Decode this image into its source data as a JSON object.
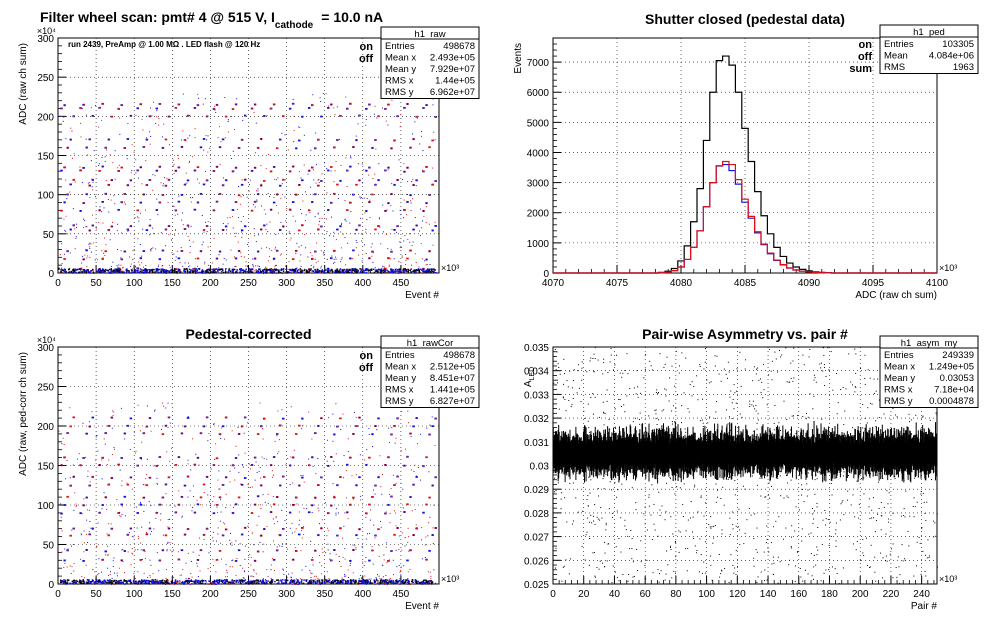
{
  "page_title": {
    "prefix": "Filter wheel scan: pmt#",
    "pmt": "4 @",
    "voltage": "515 V, I",
    "subscript": "cathode",
    "current": "= 10.0 nA"
  },
  "colors": {
    "on": "#1010e0",
    "off": "#e01010",
    "sum": "#000000"
  },
  "chart_data": [
    {
      "id": "raw",
      "type": "scatter",
      "title": "",
      "xlabel": "Event #",
      "ylabel": "ADC (raw ch sum)",
      "x_multiplier": "×10³",
      "y_multiplier": "×10⁴",
      "xlim": [
        0,
        500
      ],
      "ylim": [
        0,
        300
      ],
      "xticks": [
        0,
        50,
        100,
        150,
        200,
        250,
        300,
        350,
        400,
        450
      ],
      "yticks": [
        0,
        50,
        100,
        150,
        200,
        250,
        300
      ],
      "annotation": "run 2439, PreAmp @ 1.00 MΩ . LED flash @ 120 Hz",
      "legend": [
        "on",
        "off"
      ],
      "stats": {
        "name": "h1_raw",
        "rows": [
          [
            "Entries",
            "498678"
          ],
          [
            "Mean x",
            "2.493e+05"
          ],
          [
            "Mean y",
            "7.929e+07"
          ],
          [
            "RMS x",
            "1.44e+05"
          ],
          [
            "RMS y",
            "6.962e+07"
          ]
        ]
      },
      "levels": [
        5,
        18,
        28,
        55,
        60,
        80,
        90,
        100,
        112,
        118,
        130,
        135,
        160,
        170,
        200,
        210,
        215
      ]
    },
    {
      "id": "ped",
      "type": "line",
      "title": "Shutter closed (pedestal data)",
      "xlabel": "ADC (raw ch sum)",
      "ylabel": "Events",
      "x_multiplier": "×10³",
      "xlim": [
        4070,
        4100
      ],
      "ylim": [
        0,
        7800
      ],
      "xticks": [
        4070,
        4075,
        4080,
        4085,
        4090,
        4095,
        4100
      ],
      "yticks": [
        0,
        1000,
        2000,
        3000,
        4000,
        5000,
        6000,
        7000
      ],
      "legend": [
        "on",
        "off",
        "sum"
      ],
      "stats": {
        "name": "h1_ped",
        "rows": [
          [
            "Entries",
            "103305"
          ],
          [
            "Mean",
            "4.084e+06"
          ],
          [
            "RMS",
            "1963"
          ]
        ]
      },
      "x": [
        4078.5,
        4079,
        4079.5,
        4080,
        4080.5,
        4081,
        4081.5,
        4082,
        4082.5,
        4083,
        4083.5,
        4084,
        4084.5,
        4085,
        4085.5,
        4086,
        4086.5,
        4087,
        4087.5,
        4088,
        4088.5,
        4089,
        4089.5,
        4090,
        4090.5,
        4091,
        4091.5,
        4092
      ],
      "series": [
        {
          "name": "sum",
          "values": [
            20,
            60,
            150,
            400,
            900,
            1700,
            2800,
            4400,
            6000,
            7050,
            7200,
            6900,
            6000,
            4800,
            3700,
            2700,
            1900,
            1300,
            850,
            550,
            330,
            200,
            120,
            70,
            40,
            20,
            10,
            0
          ]
        },
        {
          "name": "on",
          "values": [
            10,
            30,
            80,
            200,
            450,
            850,
            1400,
            2200,
            3000,
            3550,
            3600,
            3400,
            2950,
            2350,
            1820,
            1330,
            940,
            640,
            420,
            270,
            160,
            100,
            60,
            35,
            20,
            10,
            5,
            0
          ]
        },
        {
          "name": "off",
          "values": [
            10,
            30,
            80,
            200,
            450,
            850,
            1400,
            2200,
            3000,
            3560,
            3700,
            3600,
            3100,
            2450,
            1880,
            1370,
            960,
            660,
            430,
            280,
            170,
            100,
            60,
            35,
            20,
            10,
            5,
            0
          ]
        }
      ]
    },
    {
      "id": "rawCor",
      "type": "scatter",
      "title": "Pedestal-corrected",
      "xlabel": "Event #",
      "ylabel": "ADC (raw, ped-corr ch sum)",
      "x_multiplier": "×10³",
      "y_multiplier": "×10⁴",
      "xlim": [
        0,
        500
      ],
      "ylim": [
        0,
        300
      ],
      "xticks": [
        0,
        50,
        100,
        150,
        200,
        250,
        300,
        350,
        400,
        450
      ],
      "yticks": [
        0,
        50,
        100,
        150,
        200,
        250,
        300
      ],
      "legend": [
        "on",
        "off"
      ],
      "stats": {
        "name": "h1_rawCor",
        "rows": [
          [
            "Entries",
            "498678"
          ],
          [
            "Mean x",
            "2.512e+05"
          ],
          [
            "Mean y",
            "8.451e+07"
          ],
          [
            "RMS x",
            "1.441e+05"
          ],
          [
            "RMS y",
            "6.827e+07"
          ]
        ]
      },
      "levels": [
        2,
        30,
        42,
        62,
        70,
        90,
        100,
        110,
        125,
        135,
        150,
        160,
        190,
        200,
        210
      ]
    },
    {
      "id": "asym",
      "type": "scatter",
      "title": "Pair-wise Asymmetry vs. pair #",
      "xlabel": "Pair #",
      "ylabel": "A_LED",
      "x_multiplier": "×10³",
      "xlim": [
        0,
        250
      ],
      "ylim": [
        0.025,
        0.035
      ],
      "xticks": [
        0,
        20,
        40,
        60,
        80,
        100,
        120,
        140,
        160,
        180,
        200,
        220,
        240
      ],
      "yticks": [
        0.025,
        0.026,
        0.027,
        0.028,
        0.029,
        0.03,
        0.031,
        0.032,
        0.033,
        0.034,
        0.035
      ],
      "ytick_labels": [
        "0.025",
        "0.026",
        "0.027",
        "0.028",
        "0.029",
        "0.03",
        "0.031",
        "0.032",
        "0.033",
        "0.034",
        "0.035"
      ],
      "stats": {
        "name": "h1_asym_my",
        "rows": [
          [
            "Entries",
            "249339"
          ],
          [
            "Mean x",
            "1.249e+05"
          ],
          [
            "Mean y",
            "0.03053"
          ],
          [
            "RMS x",
            "7.18e+04"
          ],
          [
            "RMS y",
            "0.0004878"
          ]
        ]
      },
      "band_center": 0.0305,
      "band_halfwidth": 0.0009
    }
  ]
}
